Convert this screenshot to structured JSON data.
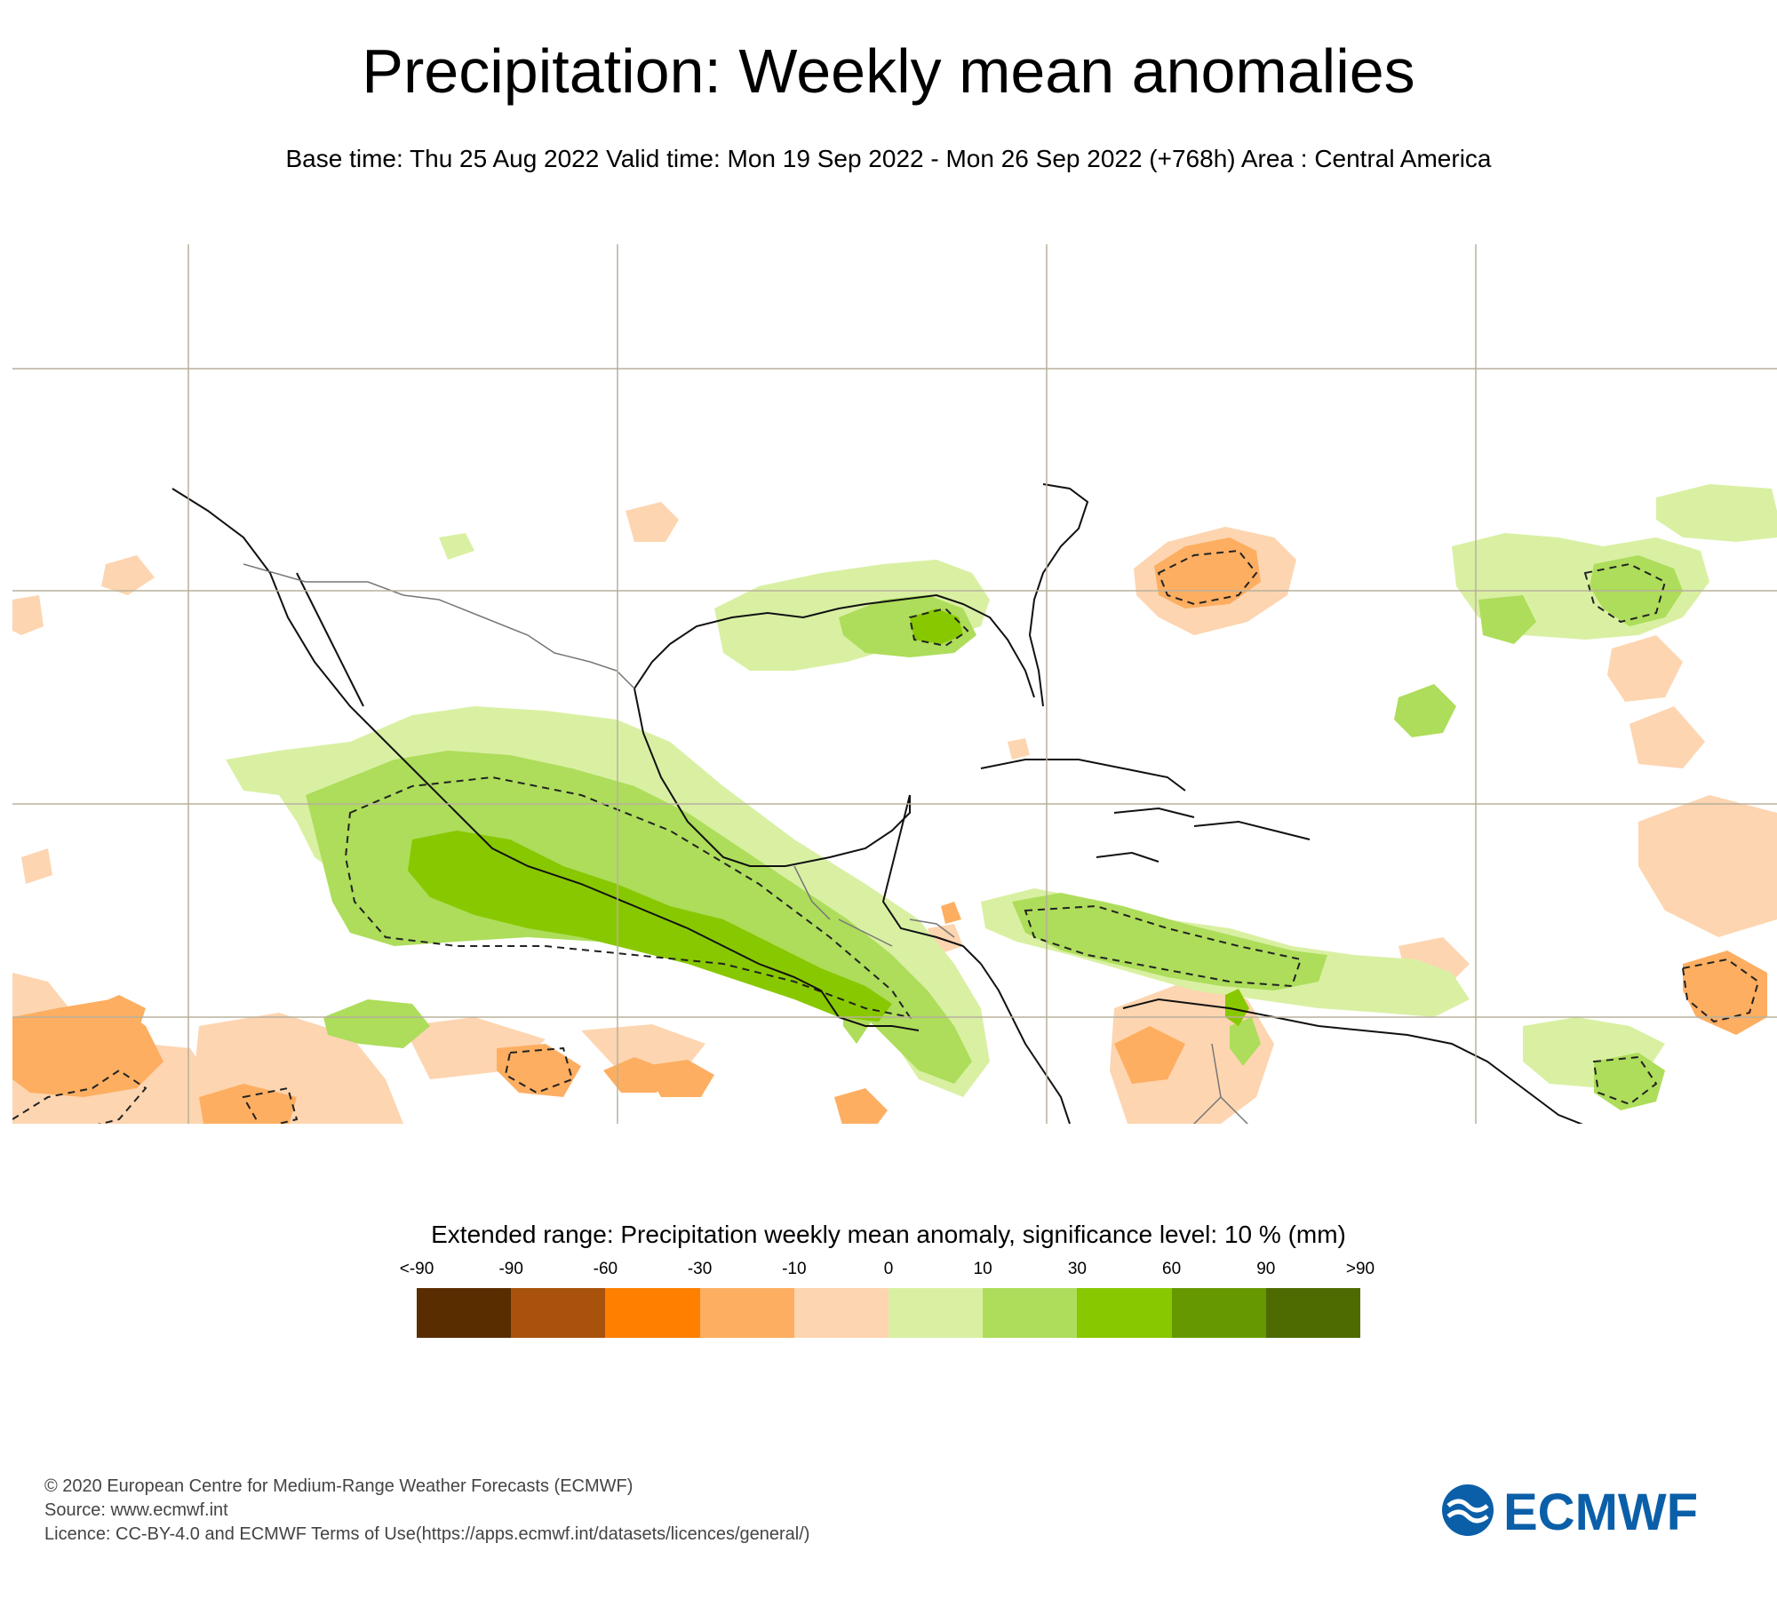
{
  "header": {
    "title": "Precipitation: Weekly mean anomalies",
    "subtitle": "Base time: Thu 25 Aug 2022 Valid time: Mon 19 Sep 2022 - Mon 26 Sep 2022 (+768h) Area : Central America"
  },
  "legend": {
    "title": "Extended range: Precipitation weekly mean anomaly, significance level: 10 % (mm)",
    "ticks": [
      "<-90",
      "-90",
      "-60",
      "-30",
      "-10",
      "0",
      "10",
      "30",
      "60",
      "90",
      ">90"
    ],
    "colors": [
      "#5a2d00",
      "#a8520b",
      "#ff7f00",
      "#fdae61",
      "#fdd5b0",
      "#d9f0a3",
      "#addd5a",
      "#88c800",
      "#669900",
      "#4d6b00"
    ]
  },
  "map_colors": {
    "ocean": "#ffffff",
    "gridline": "#b8b09c",
    "coast": "#111111",
    "border": "#777777",
    "dry_light": "#fdd5b0",
    "dry_medium": "#fdae61",
    "wet_light": "#d9f0a3",
    "wet_medium": "#addd5a",
    "wet_strong": "#88c800",
    "significance_line": "#222222"
  },
  "footer": {
    "line1": "© 2020 European Centre for Medium-Range Weather Forecasts (ECMWF)",
    "line2": "Source: www.ecmwf.int",
    "line3": "Licence: CC-BY-4.0 and ECMWF Terms of Use(https://apps.ecmwf.int/datasets/licences/general/)"
  },
  "logo": {
    "text": "ECMWF",
    "color": "#0b5fa8"
  }
}
